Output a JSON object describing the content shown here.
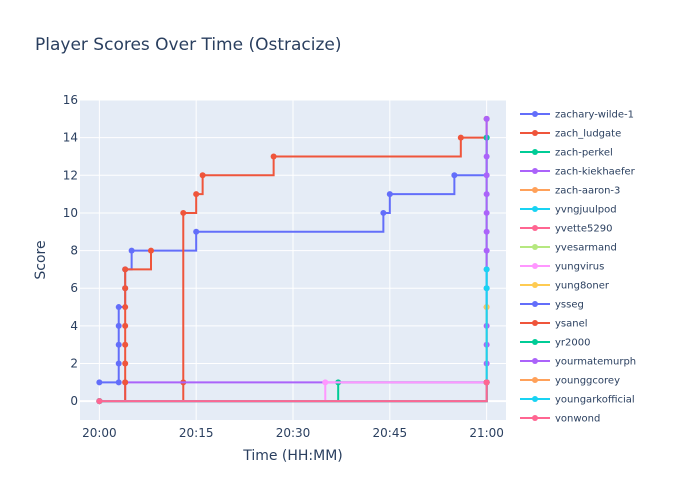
{
  "chart_data": {
    "type": "line",
    "line_shape": "step",
    "title": "Player Scores Over Time (Ostracize)",
    "xlabel": "Time (HH:MM)",
    "ylabel": "Score",
    "xlim": [
      "19:57",
      "21:03"
    ],
    "ylim": [
      -1,
      16
    ],
    "x_ticks": [
      "20:00",
      "20:15",
      "20:30",
      "20:45",
      "21:00"
    ],
    "y_ticks": [
      0,
      2,
      4,
      6,
      8,
      10,
      12,
      14,
      16
    ],
    "grid": true,
    "legend_position": "right",
    "series": [
      {
        "name": "zachary-wilde-1",
        "color": "#636efa",
        "x": [
          "20:00",
          "20:03",
          "20:03",
          "20:03",
          "20:03",
          "20:03",
          "20:04",
          "20:04",
          "20:05",
          "20:15",
          "20:44",
          "20:45",
          "20:55",
          "21:00"
        ],
        "y": [
          1,
          1,
          2,
          3,
          4,
          5,
          6,
          7,
          8,
          9,
          10,
          11,
          12,
          14
        ]
      },
      {
        "name": "zach_ludgate",
        "color": "#ef553b",
        "x": [
          "20:00",
          "20:13",
          "20:13",
          "20:15",
          "20:16",
          "20:27",
          "20:56",
          "21:00"
        ],
        "y": [
          0,
          1,
          10,
          11,
          12,
          13,
          14,
          15
        ]
      },
      {
        "name": "zach-perkel",
        "color": "#00cc96",
        "x": [
          "20:00",
          "20:37",
          "21:00"
        ],
        "y": [
          0,
          1,
          14
        ]
      },
      {
        "name": "zach-kiekhaefer",
        "color": "#ab63fa",
        "x": [
          "20:00",
          "20:04",
          "21:00",
          "21:00",
          "21:00",
          "21:00",
          "21:00",
          "21:00",
          "21:00",
          "21:00",
          "21:00",
          "21:00",
          "21:00",
          "21:00",
          "21:00"
        ],
        "y": [
          0,
          1,
          2,
          3,
          4,
          5,
          6,
          7,
          8,
          9,
          10,
          11,
          12,
          13,
          15
        ]
      },
      {
        "name": "zach-aaron-3",
        "color": "#ffa15a",
        "x": [
          "20:00",
          "21:00"
        ],
        "y": [
          0,
          1
        ]
      },
      {
        "name": "yvngjuulpod",
        "color": "#19d3f3",
        "x": [
          "20:00",
          "21:00"
        ],
        "y": [
          0,
          1
        ]
      },
      {
        "name": "yvette5290",
        "color": "#ff6692",
        "x": [
          "20:00",
          "21:00"
        ],
        "y": [
          0,
          1
        ]
      },
      {
        "name": "yvesarmand",
        "color": "#b6e880",
        "x": [
          "20:00",
          "21:00"
        ],
        "y": [
          0,
          1
        ]
      },
      {
        "name": "yungvirus",
        "color": "#ff97ff",
        "x": [
          "20:00",
          "20:35",
          "21:00"
        ],
        "y": [
          0,
          1,
          1
        ]
      },
      {
        "name": "yung8oner",
        "color": "#fecb52",
        "x": [
          "20:00",
          "21:00"
        ],
        "y": [
          0,
          5
        ]
      },
      {
        "name": "ysseg",
        "color": "#636efa",
        "x": [
          "20:00",
          "21:00"
        ],
        "y": [
          0,
          1
        ]
      },
      {
        "name": "ysanel",
        "color": "#ef553b",
        "x": [
          "20:00",
          "20:04",
          "20:04",
          "20:04",
          "20:04",
          "20:04",
          "20:04",
          "20:04",
          "20:08"
        ],
        "y": [
          0,
          1,
          2,
          3,
          4,
          5,
          6,
          7,
          8
        ]
      },
      {
        "name": "yr2000",
        "color": "#00cc96",
        "x": [
          "20:00",
          "21:00"
        ],
        "y": [
          0,
          1
        ]
      },
      {
        "name": "yourmatemurph",
        "color": "#ab63fa",
        "x": [
          "20:00",
          "21:00"
        ],
        "y": [
          0,
          1
        ]
      },
      {
        "name": "younggcorey",
        "color": "#ffa15a",
        "x": [
          "20:00",
          "21:00"
        ],
        "y": [
          0,
          1
        ]
      },
      {
        "name": "youngarkofficial",
        "color": "#19d3f3",
        "x": [
          "20:00",
          "21:00",
          "21:00"
        ],
        "y": [
          0,
          6,
          7
        ]
      },
      {
        "name": "yonwond",
        "color": "#ff6692",
        "x": [
          "20:00",
          "21:00"
        ],
        "y": [
          0,
          1
        ]
      }
    ]
  }
}
